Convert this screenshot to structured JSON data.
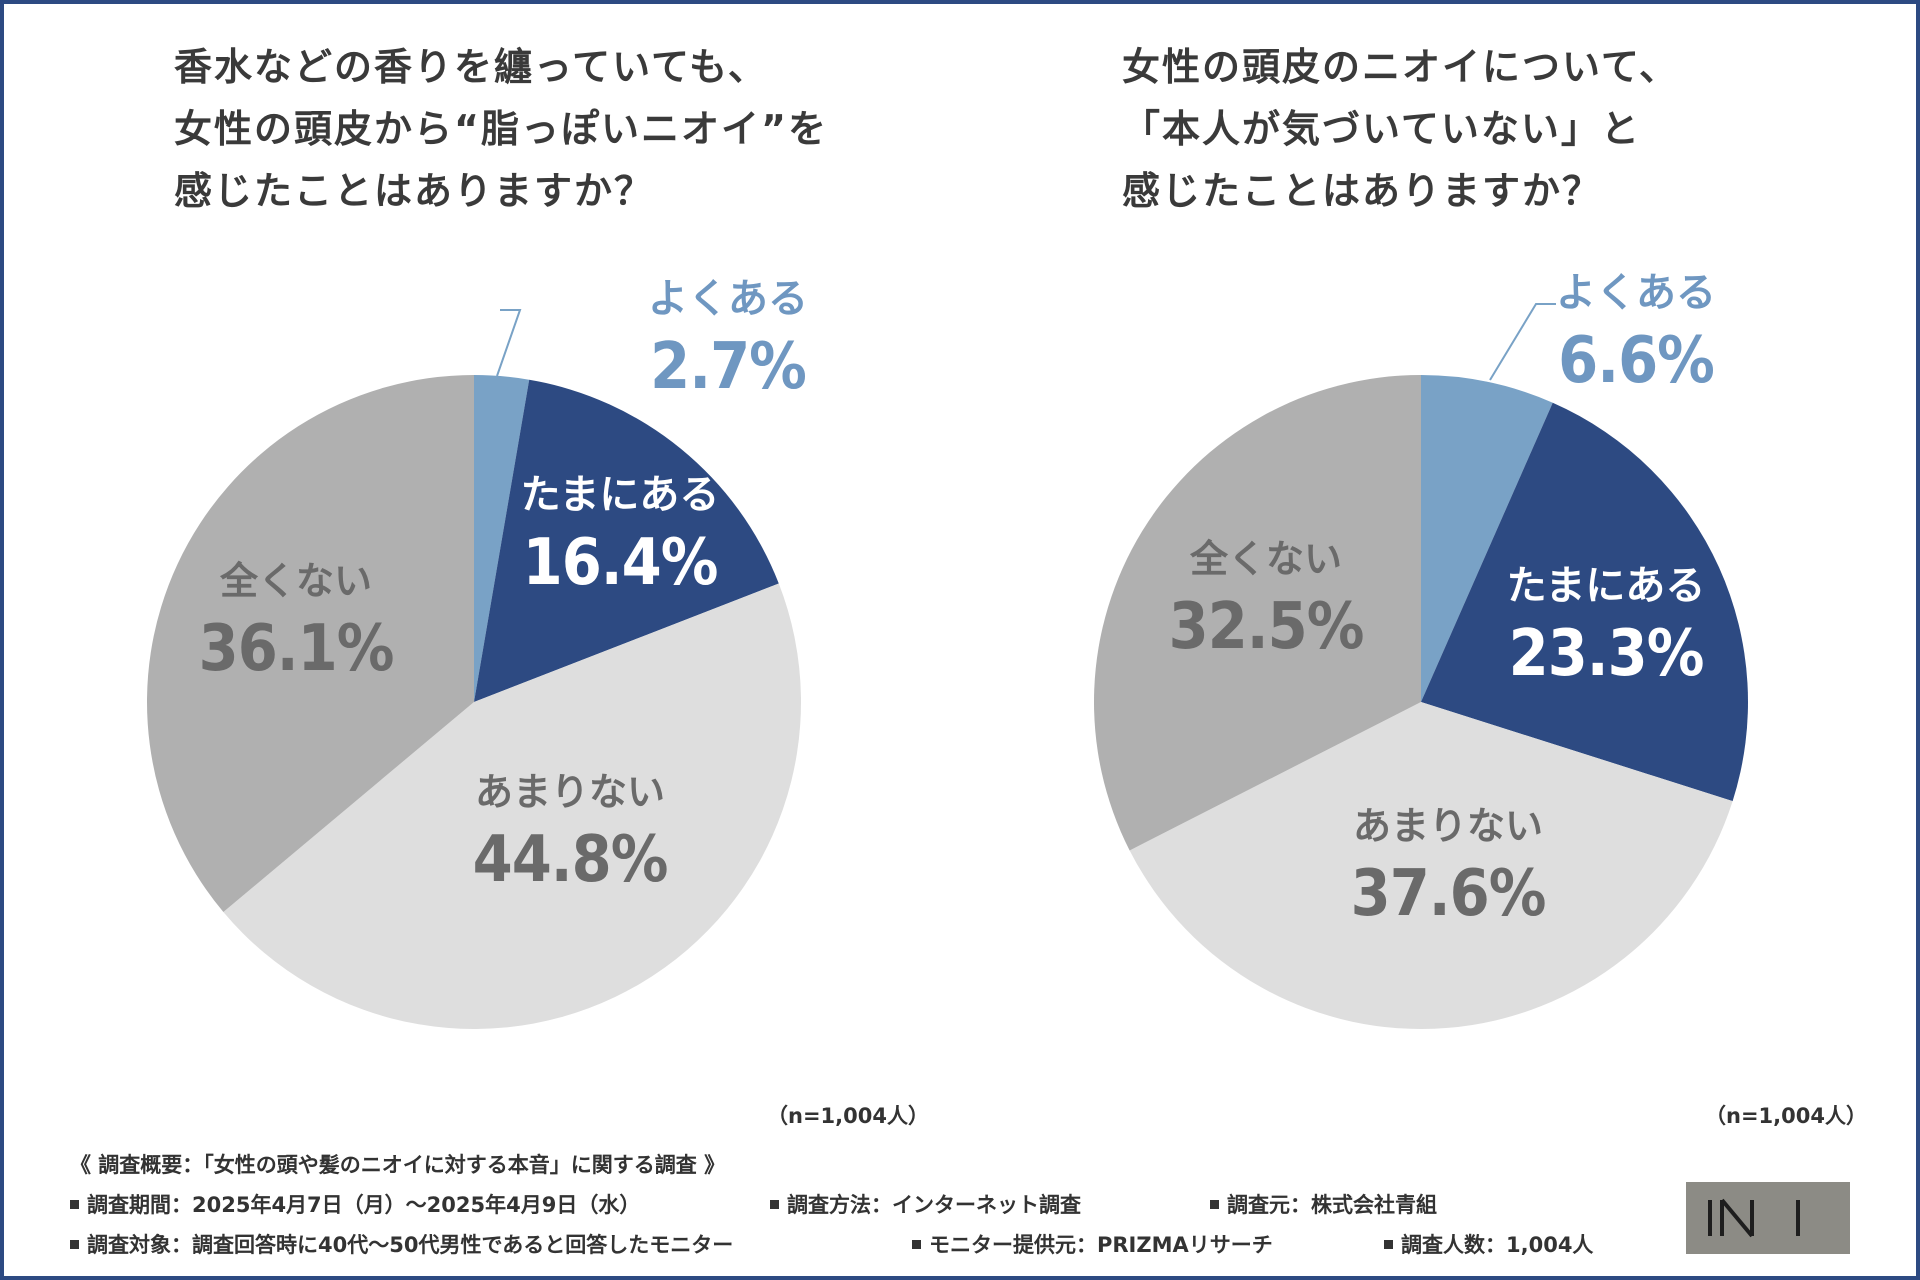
{
  "colors": {
    "frame": "#2d4a82",
    "often": "#79a2c6",
    "sometimes": "#2d4a82",
    "rarely": "#dedede",
    "never": "#b0b0b0",
    "often_label": "#6f97c1",
    "white_label": "#ffffff",
    "gray_label": "#6a6a6a",
    "logo": "#8c8b85"
  },
  "chart_data": [
    {
      "type": "pie",
      "title": [
        "香水などの香りを纏っていても、",
        "女性の頭皮から“脂っぽいニオイ”を",
        "感じたことはありますか？"
      ],
      "slices": [
        {
          "label": "よくある",
          "value": 2.7,
          "value_text": "2.7%"
        },
        {
          "label": "たまにある",
          "value": 16.4,
          "value_text": "16.4%"
        },
        {
          "label": "あまりない",
          "value": 44.8,
          "value_text": "44.8%"
        },
        {
          "label": "全くない",
          "value": 36.1,
          "value_text": "36.1%"
        }
      ],
      "sample": "（n=1,004人）"
    },
    {
      "type": "pie",
      "title": [
        "女性の頭皮のニオイについて、",
        "「本人が気づいていない」と",
        "感じたことはありますか？"
      ],
      "slices": [
        {
          "label": "よくある",
          "value": 6.6,
          "value_text": "6.6%"
        },
        {
          "label": "たまにある",
          "value": 23.3,
          "value_text": "23.3%"
        },
        {
          "label": "あまりない",
          "value": 37.6,
          "value_text": "37.6%"
        },
        {
          "label": "全くない",
          "value": 32.5,
          "value_text": "32.5%"
        }
      ],
      "sample": "（n=1,004人）"
    }
  ],
  "footer": {
    "heading": "《 調査概要：「女性の頭や髪のニオイに対する本音」に関する調査 》",
    "period": "調査期間：2025年4月7日（月）～2025年4月9日（水）",
    "method": "調査方法：インターネット調査",
    "source": "調査元：株式会社青組",
    "target": "調査対象：調査回答時に40代～50代男性であると回答したモニター",
    "provider": "モニター提供元：PRIZMAリサーチ",
    "count": "調査人数：1,004人"
  }
}
